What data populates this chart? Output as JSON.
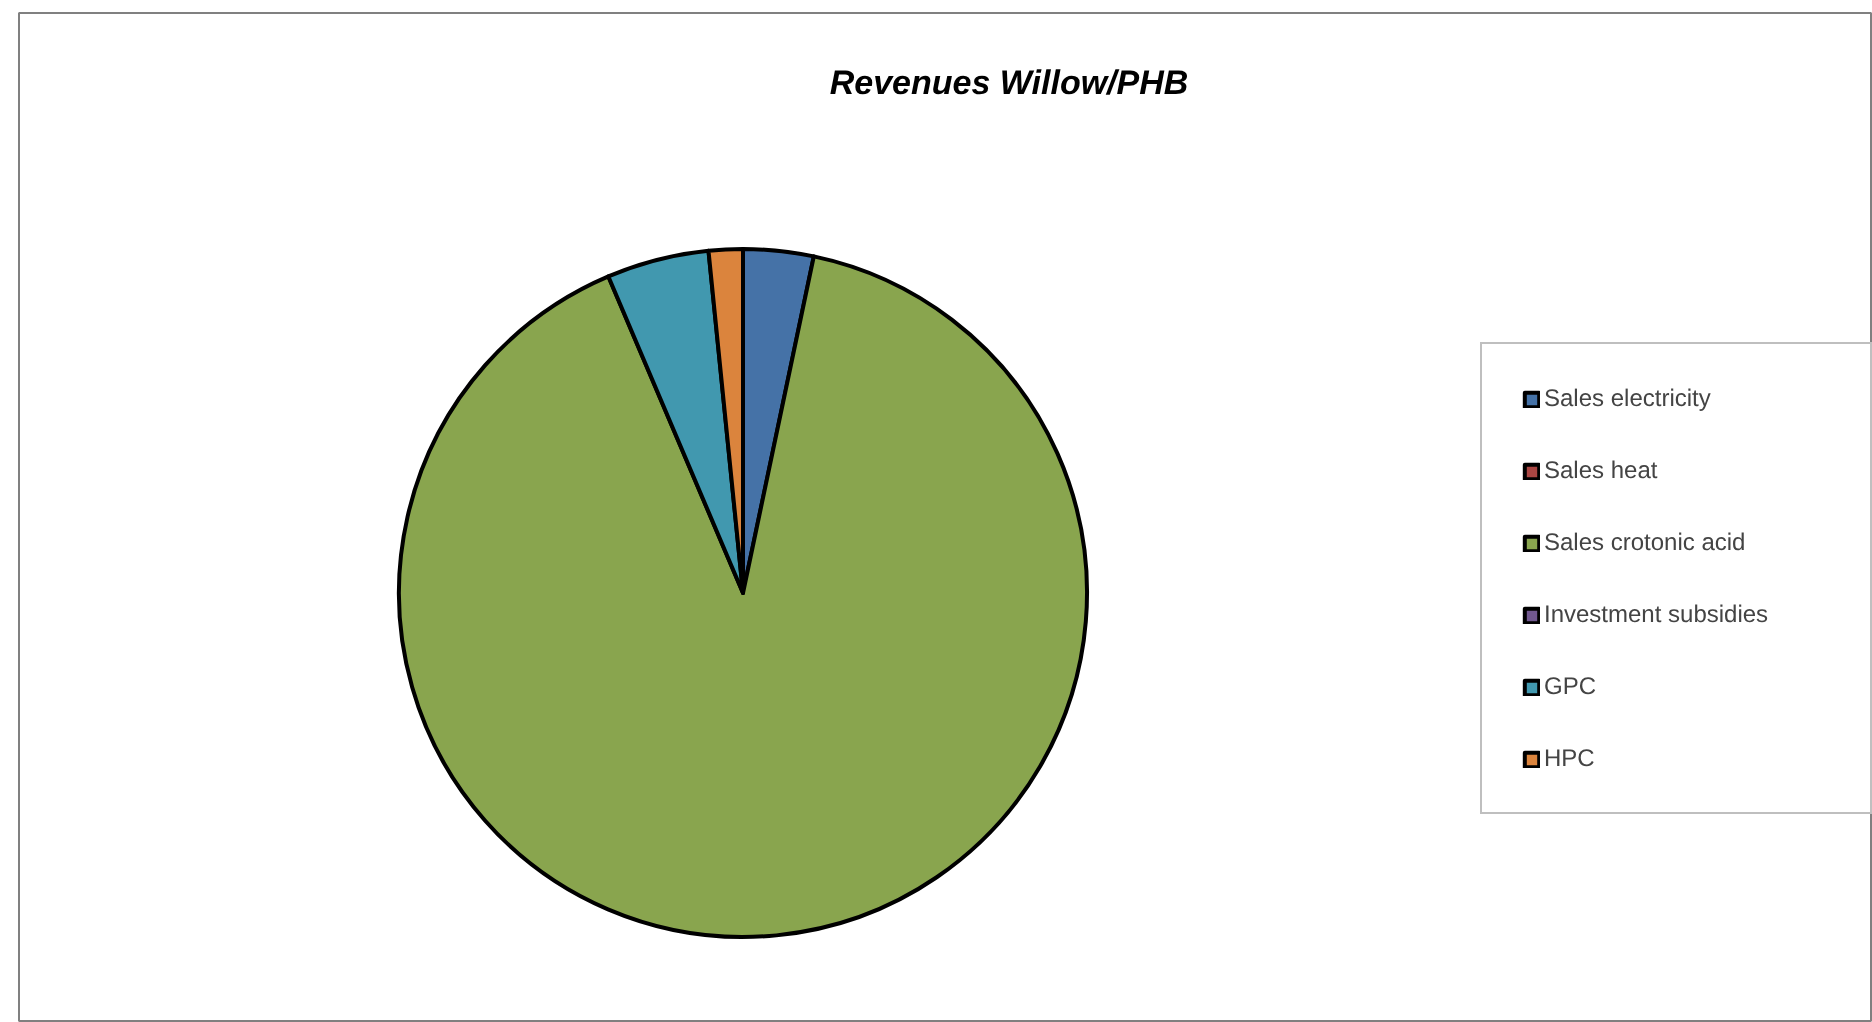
{
  "chart_data": {
    "type": "pie",
    "title": "Revenues Willow/PHB",
    "categories": [
      "Sales electricity",
      "Sales heat",
      "Sales crotonic acid",
      "Investment subsidies",
      "GPC",
      "HPC"
    ],
    "values": [
      3.3,
      0,
      90.3,
      0,
      4.8,
      1.6
    ],
    "colors": [
      "#4572a7",
      "#aa4643",
      "#89a54e",
      "#71588f",
      "#4198af",
      "#db843d"
    ],
    "legend": "right"
  }
}
